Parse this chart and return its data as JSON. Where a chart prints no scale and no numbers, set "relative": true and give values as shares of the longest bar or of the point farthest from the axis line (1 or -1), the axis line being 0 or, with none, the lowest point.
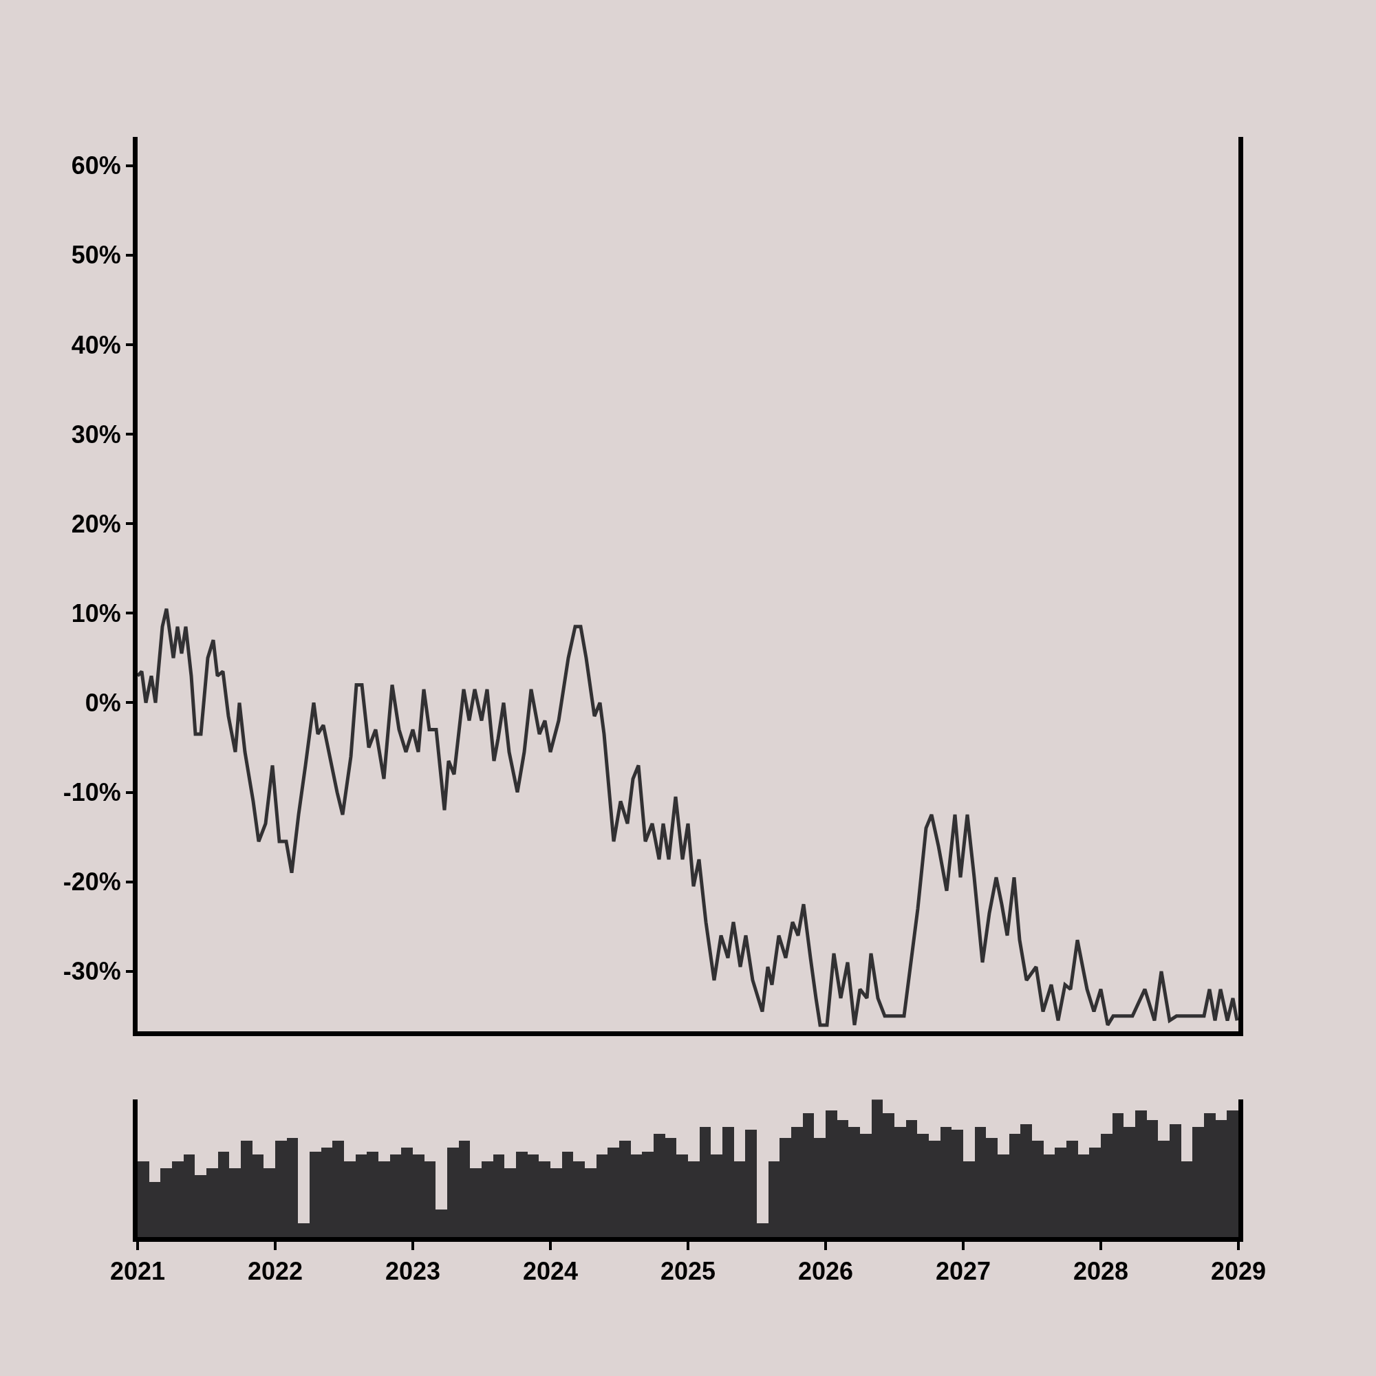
{
  "chart_data": [
    {
      "type": "line",
      "color": "#323133",
      "tick_labels": "y",
      "x": [
        2021.0,
        2021.03,
        2021.06,
        2021.1,
        2021.13,
        2021.18,
        2021.21,
        2021.26,
        2021.29,
        2021.32,
        2021.35,
        2021.39,
        2021.42,
        2021.46,
        2021.51,
        2021.55,
        2021.58,
        2021.62,
        2021.66,
        2021.71,
        2021.74,
        2021.78,
        2021.84,
        2021.88,
        2021.93,
        2021.98,
        2022.03,
        2022.08,
        2022.12,
        2022.17,
        2022.22,
        2022.28,
        2022.31,
        2022.35,
        2022.39,
        2022.45,
        2022.49,
        2022.55,
        2022.59,
        2022.63,
        2022.68,
        2022.73,
        2022.79,
        2022.85,
        2022.9,
        2022.95,
        2023.0,
        2023.04,
        2023.08,
        2023.12,
        2023.17,
        2023.23,
        2023.26,
        2023.3,
        2023.37,
        2023.41,
        2023.45,
        2023.5,
        2023.54,
        2023.59,
        2023.62,
        2023.66,
        2023.7,
        2023.76,
        2023.81,
        2023.86,
        2023.92,
        2023.96,
        2024.0,
        2024.06,
        2024.13,
        2024.18,
        2024.22,
        2024.26,
        2024.32,
        2024.36,
        2024.39,
        2024.46,
        2024.51,
        2024.56,
        2024.6,
        2024.64,
        2024.69,
        2024.74,
        2024.79,
        2024.82,
        2024.86,
        2024.91,
        2024.96,
        2025.0,
        2025.04,
        2025.08,
        2025.13,
        2025.19,
        2025.24,
        2025.29,
        2025.33,
        2025.38,
        2025.42,
        2025.47,
        2025.54,
        2025.58,
        2025.61,
        2025.66,
        2025.71,
        2025.76,
        2025.8,
        2025.84,
        2025.89,
        2025.93,
        2025.96,
        2026.01,
        2026.06,
        2026.11,
        2026.16,
        2026.21,
        2026.25,
        2026.3,
        2026.33,
        2026.38,
        2026.43,
        2026.51,
        2026.57,
        2026.67,
        2026.73,
        2026.77,
        2026.82,
        2026.88,
        2026.94,
        2026.98,
        2027.03,
        2027.08,
        2027.14,
        2027.19,
        2027.24,
        2027.28,
        2027.32,
        2027.37,
        2027.41,
        2027.46,
        2027.53,
        2027.58,
        2027.64,
        2027.69,
        2027.74,
        2027.78,
        2027.83,
        2027.9,
        2027.95,
        2028.0,
        2028.05,
        2028.09,
        2028.13,
        2028.23,
        2028.32,
        2028.39,
        2028.44,
        2028.5,
        2028.55,
        2028.67,
        2028.75,
        2028.79,
        2028.83,
        2028.87,
        2028.92,
        2028.96,
        2028.99
      ],
      "values": [
        3,
        3.5,
        0,
        3,
        0,
        8.5,
        10.5,
        5,
        8.5,
        5.5,
        8.5,
        3,
        -3.5,
        -3.5,
        5,
        7,
        3,
        3.5,
        -1.5,
        -5.5,
        0,
        -5.5,
        -11,
        -15.5,
        -13.5,
        -7,
        -15.5,
        -15.5,
        -19,
        -12.5,
        -7,
        0,
        -3.5,
        -2.5,
        -5.5,
        -10,
        -12.5,
        -6,
        2,
        2,
        -5,
        -3,
        -8.5,
        2,
        -3,
        -5.5,
        -3,
        -5.5,
        1.5,
        -3,
        -3,
        -12,
        -6.5,
        -8,
        1.5,
        -2,
        1.5,
        -2,
        1.5,
        -6.5,
        -4,
        0,
        -5.5,
        -10,
        -5.5,
        1.5,
        -3.5,
        -2,
        -5.5,
        -2,
        5,
        8.5,
        8.5,
        5,
        -1.5,
        0,
        -3.5,
        -15.5,
        -11,
        -13.5,
        -8.5,
        -7,
        -15.5,
        -13.5,
        -17.5,
        -13.5,
        -17.5,
        -10.5,
        -17.5,
        -13.5,
        -20.5,
        -17.5,
        -24.5,
        -31,
        -26,
        -28.5,
        -24.5,
        -29.5,
        -26,
        -31,
        -34.5,
        -29.5,
        -31.5,
        -26,
        -28.5,
        -24.5,
        -26,
        -22.5,
        -28.5,
        -33,
        -36,
        -36,
        -28,
        -33,
        -29,
        -36,
        -32,
        -33,
        -28,
        -33,
        -35,
        -35,
        -35,
        -23,
        -14,
        -12.5,
        -16,
        -21,
        -12.5,
        -19.5,
        -12.5,
        -19.5,
        -29,
        -23.5,
        -19.5,
        -22.5,
        -26,
        -19.5,
        -26.5,
        -31,
        -29.5,
        -34.5,
        -31.5,
        -35.5,
        -31.5,
        -32,
        -26.5,
        -32,
        -34.5,
        -32,
        -36,
        -35,
        -35,
        -35,
        -32,
        -35.5,
        -30,
        -35.5,
        -35,
        -35,
        -35,
        -32,
        -35.5,
        -32,
        -35.5,
        -33,
        -35.5
      ],
      "xlim": [
        2021,
        2029
      ],
      "xticks": [
        2021,
        2022,
        2023,
        2024,
        2025,
        2026,
        2027,
        2028,
        2029
      ],
      "ylim": [
        -36.7,
        63.2
      ],
      "yticks": [
        {
          "value": -30,
          "label": "-30%"
        },
        {
          "value": -20,
          "label": "-20%"
        },
        {
          "value": -10,
          "label": "-10%"
        },
        {
          "value": 0,
          "label": "0%"
        },
        {
          "value": 10,
          "label": "10%"
        },
        {
          "value": 20,
          "label": "20%"
        },
        {
          "value": 30,
          "label": "30%"
        },
        {
          "value": 40,
          "label": "40%"
        },
        {
          "value": 50,
          "label": "50%"
        },
        {
          "value": 60,
          "label": "60%"
        }
      ]
    },
    {
      "type": "bar",
      "color": "#302f31",
      "relative": true,
      "tick_labels": "x",
      "x": [
        2021.042,
        2021.125,
        2021.208,
        2021.292,
        2021.375,
        2021.458,
        2021.542,
        2021.625,
        2021.708,
        2021.792,
        2021.875,
        2021.958,
        2022.042,
        2022.125,
        2022.208,
        2022.292,
        2022.375,
        2022.458,
        2022.542,
        2022.625,
        2022.708,
        2022.792,
        2022.875,
        2022.958,
        2023.042,
        2023.125,
        2023.208,
        2023.292,
        2023.375,
        2023.458,
        2023.542,
        2023.625,
        2023.708,
        2023.792,
        2023.875,
        2023.958,
        2024.042,
        2024.125,
        2024.208,
        2024.292,
        2024.375,
        2024.458,
        2024.542,
        2024.625,
        2024.708,
        2024.792,
        2024.875,
        2024.958,
        2025.042,
        2025.125,
        2025.208,
        2025.292,
        2025.375,
        2025.458,
        2025.542,
        2025.625,
        2025.708,
        2025.792,
        2025.875,
        2025.958,
        2026.042,
        2026.125,
        2026.208,
        2026.292,
        2026.375,
        2026.458,
        2026.542,
        2026.625,
        2026.708,
        2026.792,
        2026.875,
        2026.958,
        2027.042,
        2027.125,
        2027.208,
        2027.292,
        2027.375,
        2027.458,
        2027.542,
        2027.625,
        2027.708,
        2027.792,
        2027.875,
        2027.958,
        2028.042,
        2028.125,
        2028.208,
        2028.292,
        2028.375,
        2028.458,
        2028.542,
        2028.625,
        2028.708,
        2028.792,
        2028.875,
        2028.958
      ],
      "xlim": [
        2021,
        2029
      ],
      "xticks": [
        2021,
        2022,
        2023,
        2024,
        2025,
        2026,
        2027,
        2028,
        2029
      ],
      "values": [
        0.55,
        0.4,
        0.5,
        0.55,
        0.6,
        0.45,
        0.5,
        0.62,
        0.5,
        0.7,
        0.6,
        0.5,
        0.7,
        0.72,
        0.1,
        0.62,
        0.65,
        0.7,
        0.55,
        0.6,
        0.62,
        0.55,
        0.6,
        0.65,
        0.6,
        0.55,
        0.2,
        0.65,
        0.7,
        0.5,
        0.55,
        0.6,
        0.5,
        0.62,
        0.6,
        0.55,
        0.5,
        0.62,
        0.55,
        0.5,
        0.6,
        0.65,
        0.7,
        0.6,
        0.62,
        0.75,
        0.72,
        0.6,
        0.55,
        0.8,
        0.6,
        0.8,
        0.55,
        0.78,
        0.1,
        0.55,
        0.72,
        0.8,
        0.9,
        0.72,
        0.92,
        0.85,
        0.8,
        0.75,
        1,
        0.9,
        0.8,
        0.85,
        0.75,
        0.7,
        0.8,
        0.78,
        0.55,
        0.8,
        0.72,
        0.6,
        0.75,
        0.82,
        0.7,
        0.6,
        0.65,
        0.7,
        0.6,
        0.65,
        0.75,
        0.9,
        0.8,
        0.92,
        0.85,
        0.7,
        0.82,
        0.55,
        0.8,
        0.9,
        0.85,
        0.92
      ]
    }
  ]
}
